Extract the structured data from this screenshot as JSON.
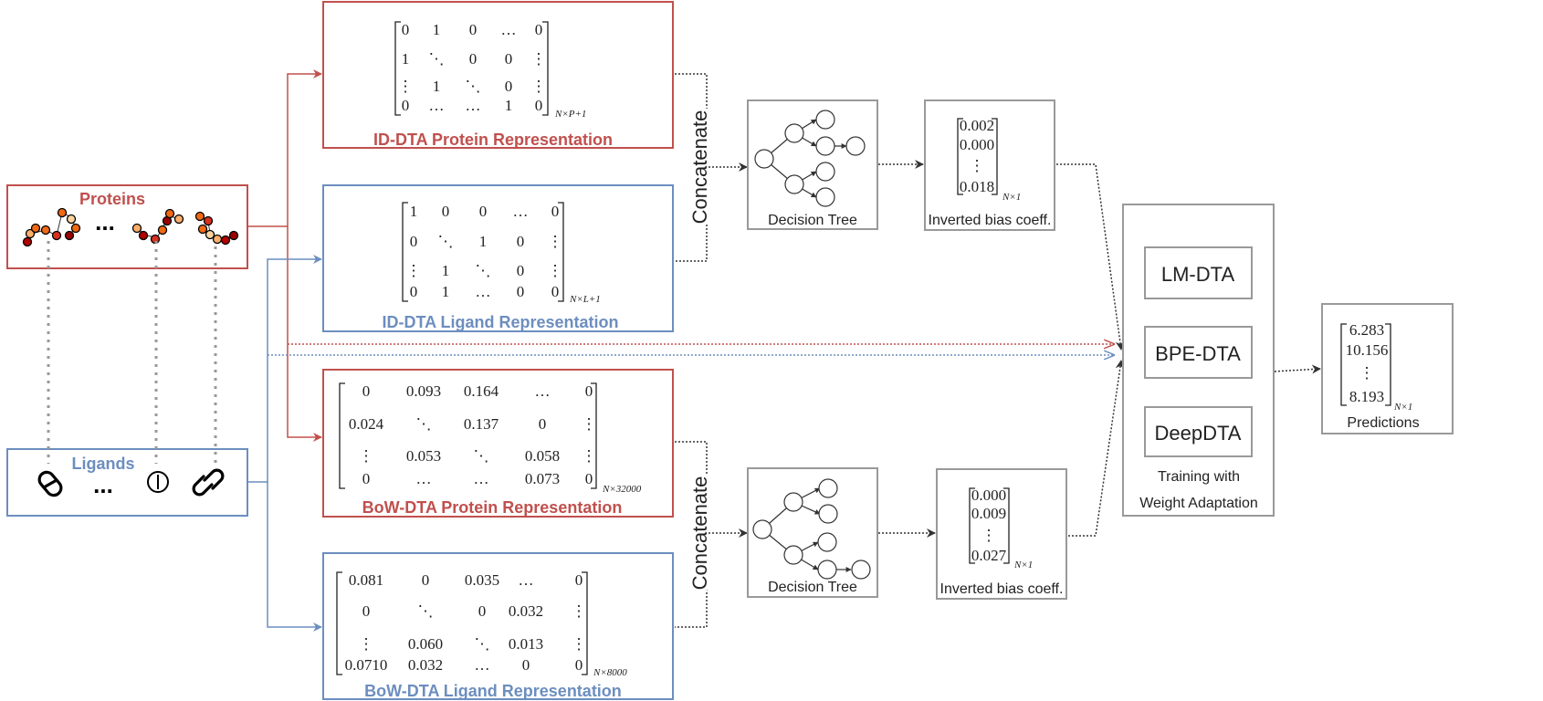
{
  "inputs": {
    "proteins_label": "Proteins",
    "ligands_label": "Ligands",
    "ellipsis": "..."
  },
  "id_protein": {
    "title": "ID-DTA Protein Representation",
    "rows": [
      [
        "0",
        "1",
        "0",
        "…",
        "0"
      ],
      [
        "1",
        "⋱",
        "0",
        "0",
        "⋮"
      ],
      [
        "⋮",
        "1",
        "⋱",
        "0",
        "⋮"
      ],
      [
        "0",
        "…",
        "…",
        "1",
        "0"
      ]
    ],
    "subscript": "N×P+1"
  },
  "id_ligand": {
    "title": "ID-DTA Ligand Representation",
    "rows": [
      [
        "1",
        "0",
        "0",
        "…",
        "0"
      ],
      [
        "0",
        "⋱",
        "1",
        "0",
        "⋮"
      ],
      [
        "⋮",
        "1",
        "⋱",
        "0",
        "⋮"
      ],
      [
        "0",
        "1",
        "…",
        "0",
        "0"
      ]
    ],
    "subscript": "N×L+1"
  },
  "bow_protein": {
    "title": "BoW-DTA Protein Representation",
    "rows": [
      [
        "0",
        "0.093",
        "0.164",
        "…",
        "0"
      ],
      [
        "0.024",
        "⋱",
        "0.137",
        "0",
        "⋮"
      ],
      [
        "⋮",
        "0.053",
        "⋱",
        "0.058",
        "⋮"
      ],
      [
        "0",
        "…",
        "…",
        "0.073",
        "0"
      ]
    ],
    "subscript": "N×32000"
  },
  "bow_ligand": {
    "title": "BoW-DTA Ligand Representation",
    "rows": [
      [
        "0.081",
        "0",
        "0.035",
        "…",
        "0"
      ],
      [
        "0",
        "⋱",
        "0",
        "0.032",
        "⋮"
      ],
      [
        "⋮",
        "0.060",
        "⋱",
        "0.013",
        "⋮"
      ],
      [
        "0.0710",
        "0.032",
        "…",
        "0",
        "0"
      ]
    ],
    "subscript": "N×8000"
  },
  "concat_label": "Concatenate",
  "tree_label": "Decision Tree",
  "bias_top": {
    "values": [
      "0.002",
      "0.000",
      "⋮",
      "0.018"
    ],
    "subscript": "N×1",
    "label": "Inverted bias coeff."
  },
  "bias_bottom": {
    "values": [
      "0.000",
      "0.009",
      "⋮",
      "0.027"
    ],
    "subscript": "N×1",
    "label": "Inverted bias coeff."
  },
  "ensemble": {
    "models": [
      "LM-DTA",
      "BPE-DTA",
      "DeepDTA"
    ],
    "caption_line1": "Training with",
    "caption_line2": "Weight Adaptation"
  },
  "predictions": {
    "values": [
      "6.283",
      "10.156",
      "⋮",
      "8.193"
    ],
    "subscript": "N×1",
    "label": "Predictions"
  },
  "colors": {
    "protein": "#c0504d",
    "ligand": "#6c8ebf",
    "box": "#999999",
    "arrow": "#333333"
  }
}
